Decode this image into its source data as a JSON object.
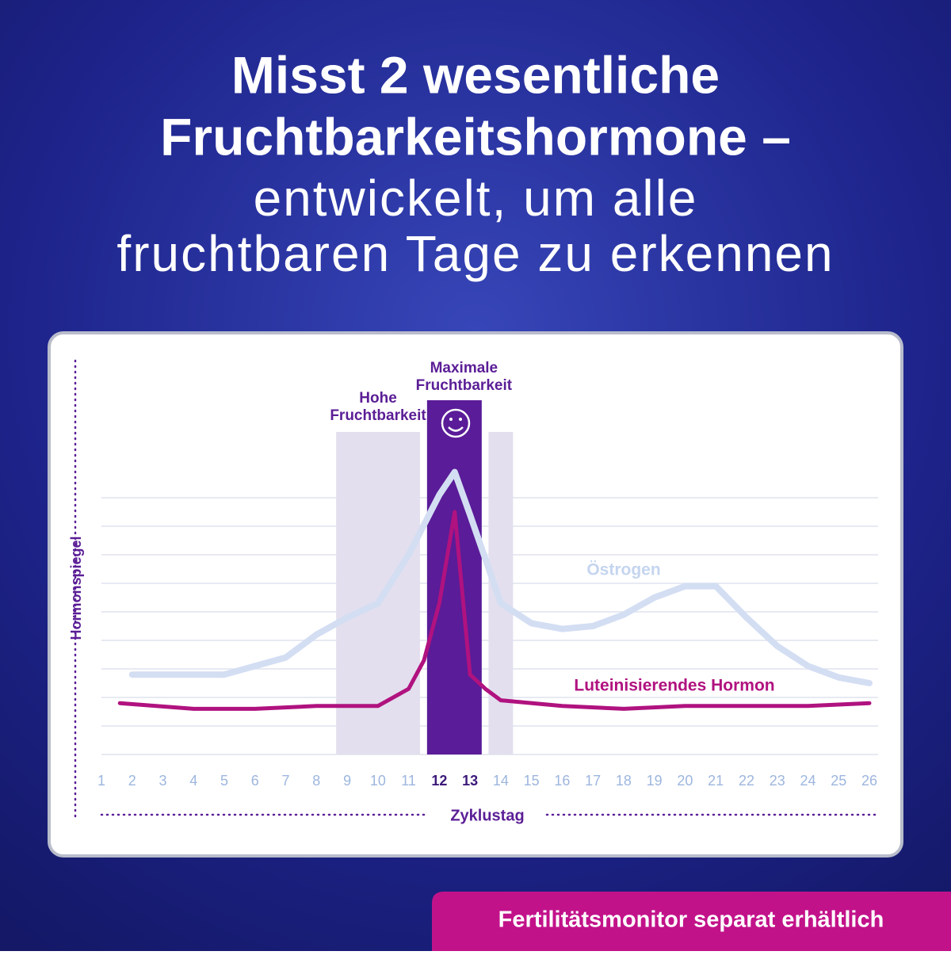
{
  "header": {
    "title_bold": [
      "Misst 2 wesentliche",
      "Fruchtbarkeitshormone –"
    ],
    "title_light": [
      "entwickelt, um alle",
      "fruchtbaren Tage zu erkennen"
    ]
  },
  "chart_data": {
    "type": "line",
    "y_label": "Hormonspiegel",
    "x_label": "Zyklustag",
    "xlim": [
      1,
      26
    ],
    "xticks": [
      1,
      2,
      3,
      4,
      5,
      6,
      7,
      8,
      9,
      10,
      11,
      12,
      13,
      14,
      15,
      16,
      17,
      18,
      19,
      20,
      21,
      22,
      23,
      24,
      25,
      26
    ],
    "ylim": [
      0,
      10
    ],
    "bands": [
      {
        "label": [
          "Hohe",
          "Fruchtbarkeit"
        ],
        "from": 8.64,
        "to": 11.37,
        "color": "#e3dfee"
      },
      {
        "label": [
          "Maximale",
          "Fruchtbarkeit"
        ],
        "from": 11.6,
        "to": 13.38,
        "color": "#5a1c98"
      },
      {
        "from": 13.6,
        "to": 14.4,
        "color": "#e3dfee"
      }
    ],
    "series": [
      {
        "name": "Östrogen",
        "color": "#d3def3",
        "x": [
          2,
          3,
          4,
          5,
          6,
          7,
          8,
          9,
          10,
          11,
          12,
          12.5,
          13,
          14,
          15,
          16,
          17,
          18,
          19,
          20,
          21,
          22,
          23,
          24,
          25,
          26
        ],
        "values": [
          2.8,
          2.8,
          2.8,
          2.8,
          3.1,
          3.4,
          4.2,
          4.8,
          5.3,
          7.0,
          9.1,
          9.9,
          8.4,
          5.3,
          4.6,
          4.4,
          4.5,
          4.9,
          5.5,
          5.9,
          5.9,
          4.8,
          3.8,
          3.1,
          2.7,
          2.5
        ]
      },
      {
        "name": "Luteinisierendes Hormon",
        "color": "#b0127f",
        "x": [
          1.6,
          4,
          6,
          8,
          10,
          11,
          11.5,
          12,
          12.5,
          13,
          13.5,
          14,
          16,
          18,
          20,
          22,
          24,
          26
        ],
        "values": [
          1.8,
          1.6,
          1.6,
          1.7,
          1.7,
          2.3,
          3.3,
          5.3,
          8.5,
          2.8,
          2.3,
          1.9,
          1.7,
          1.6,
          1.7,
          1.7,
          1.7,
          1.8
        ]
      }
    ]
  },
  "footer": {
    "badge": "Fertilitätsmonitor separat erhältlich"
  }
}
